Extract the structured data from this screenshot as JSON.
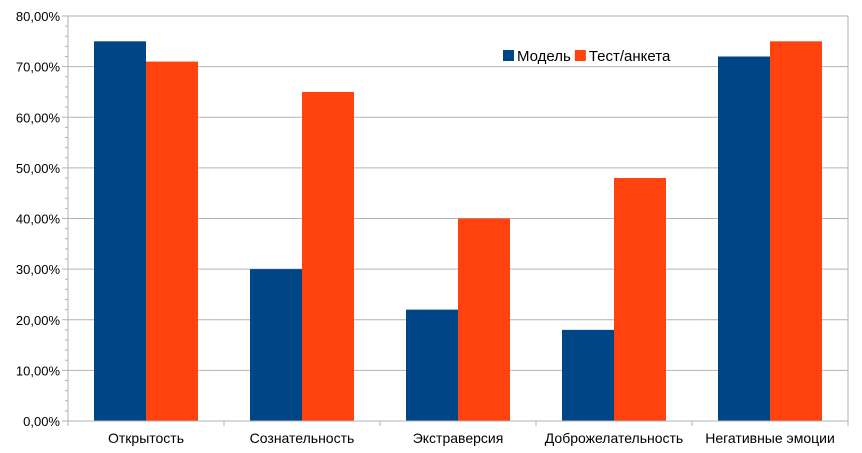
{
  "chart_data": {
    "type": "bar",
    "title": "",
    "xlabel": "",
    "ylabel": "",
    "categories": [
      "Открытость",
      "Сознательность",
      "Экстраверсия",
      "Доброжелательность",
      "Негативные эмоции"
    ],
    "series": [
      {
        "name": "Модель",
        "values": [
          0.75,
          0.3,
          0.22,
          0.18,
          0.72
        ],
        "color": "#004586"
      },
      {
        "name": "Тест/анкета",
        "values": [
          0.71,
          0.65,
          0.4,
          0.48,
          0.75
        ],
        "color": "#ff420e"
      }
    ],
    "ylim": [
      0,
      0.8
    ],
    "yticks": [
      "0,00%",
      "10,00%",
      "20,00%",
      "30,00%",
      "40,00%",
      "50,00%",
      "60,00%",
      "70,00%",
      "80,00%"
    ],
    "grid": true,
    "legend_position": "top-right"
  }
}
